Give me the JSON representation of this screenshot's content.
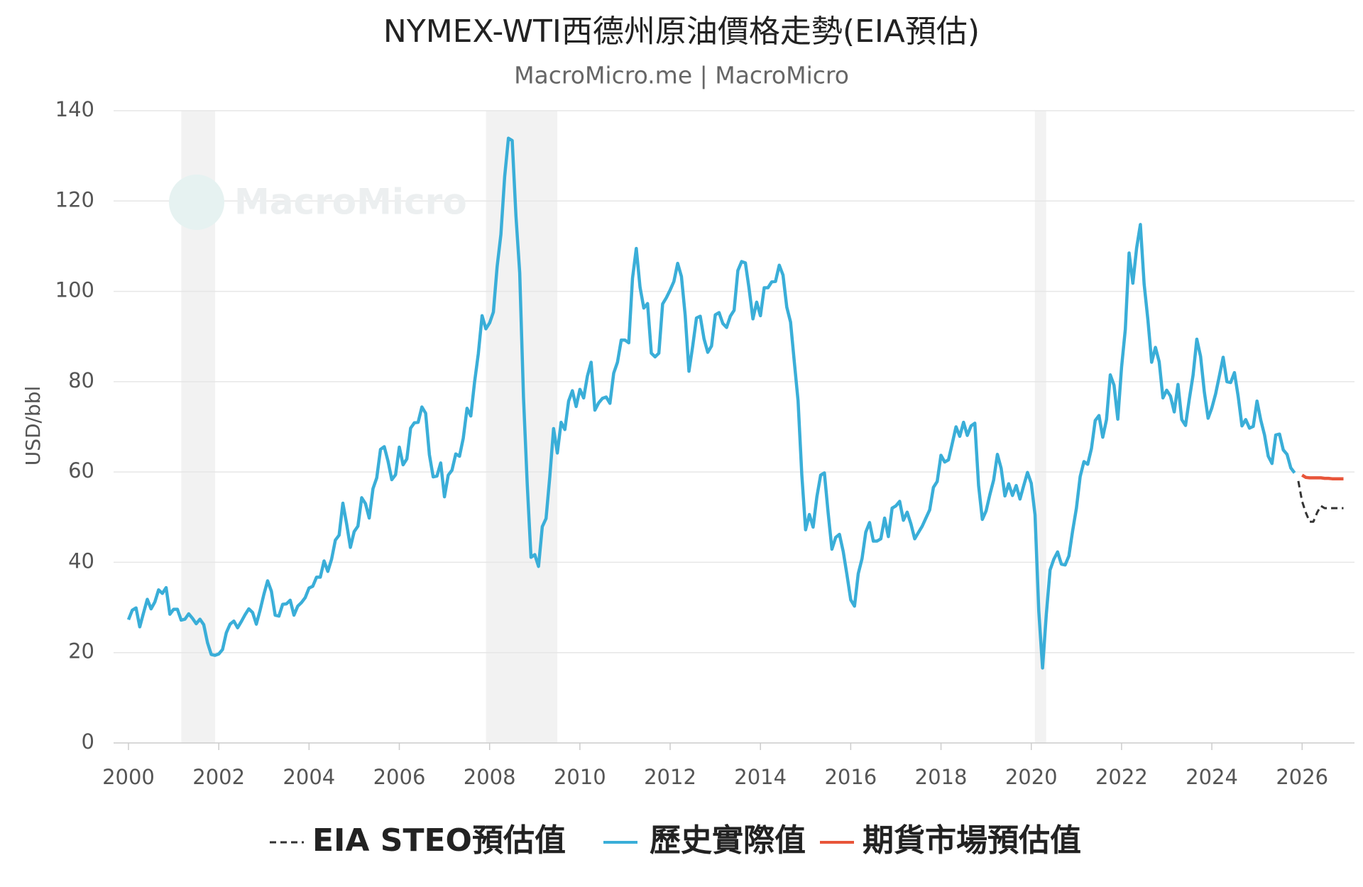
{
  "chart_data": {
    "type": "line",
    "title": "NYMEX-WTI西德州原油價格走勢(EIA預估)",
    "subtitle": "MacroMicro.me | MacroMicro",
    "watermark": "MacroMicro",
    "y_label": "USD/bbl",
    "xlim": [
      1999.67,
      2027.16
    ],
    "xticks": [
      2000,
      2002,
      2004,
      2006,
      2008,
      2010,
      2012,
      2014,
      2016,
      2018,
      2020,
      2022,
      2024,
      2026
    ],
    "ylim": [
      0,
      140
    ],
    "yticks": [
      0,
      20,
      40,
      60,
      80,
      100,
      120,
      140
    ],
    "grid": true,
    "shaded_ranges": [
      [
        2001.17,
        2001.92
      ],
      [
        2007.92,
        2009.5
      ],
      [
        2020.08,
        2020.33
      ]
    ],
    "series": [
      {
        "name": "歷史實際值",
        "color": "#3aaed8",
        "dash": false,
        "x": [
          "2000-01",
          "2000-02",
          "2000-03",
          "2000-04",
          "2000-05",
          "2000-06",
          "2000-07",
          "2000-08",
          "2000-09",
          "2000-10",
          "2000-11",
          "2000-12",
          "2001-01",
          "2001-02",
          "2001-03",
          "2001-04",
          "2001-05",
          "2001-06",
          "2001-07",
          "2001-08",
          "2001-09",
          "2001-10",
          "2001-11",
          "2001-12",
          "2002-01",
          "2002-02",
          "2002-03",
          "2002-04",
          "2002-05",
          "2002-06",
          "2002-07",
          "2002-08",
          "2002-09",
          "2002-10",
          "2002-11",
          "2002-12",
          "2003-01",
          "2003-02",
          "2003-03",
          "2003-04",
          "2003-05",
          "2003-06",
          "2003-07",
          "2003-08",
          "2003-09",
          "2003-10",
          "2003-11",
          "2003-12",
          "2004-01",
          "2004-02",
          "2004-03",
          "2004-04",
          "2004-05",
          "2004-06",
          "2004-07",
          "2004-08",
          "2004-09",
          "2004-10",
          "2004-11",
          "2004-12",
          "2005-01",
          "2005-02",
          "2005-03",
          "2005-04",
          "2005-05",
          "2005-06",
          "2005-07",
          "2005-08",
          "2005-09",
          "2005-10",
          "2005-11",
          "2005-12",
          "2006-01",
          "2006-02",
          "2006-03",
          "2006-04",
          "2006-05",
          "2006-06",
          "2006-07",
          "2006-08",
          "2006-09",
          "2006-10",
          "2006-11",
          "2006-12",
          "2007-01",
          "2007-02",
          "2007-03",
          "2007-04",
          "2007-05",
          "2007-06",
          "2007-07",
          "2007-08",
          "2007-09",
          "2007-10",
          "2007-11",
          "2007-12",
          "2008-01",
          "2008-02",
          "2008-03",
          "2008-04",
          "2008-05",
          "2008-06",
          "2008-07",
          "2008-08",
          "2008-09",
          "2008-10",
          "2008-11",
          "2008-12",
          "2009-01",
          "2009-02",
          "2009-03",
          "2009-04",
          "2009-05",
          "2009-06",
          "2009-07",
          "2009-08",
          "2009-09",
          "2009-10",
          "2009-11",
          "2009-12",
          "2010-01",
          "2010-02",
          "2010-03",
          "2010-04",
          "2010-05",
          "2010-06",
          "2010-07",
          "2010-08",
          "2010-09",
          "2010-10",
          "2010-11",
          "2010-12",
          "2011-01",
          "2011-02",
          "2011-03",
          "2011-04",
          "2011-05",
          "2011-06",
          "2011-07",
          "2011-08",
          "2011-09",
          "2011-10",
          "2011-11",
          "2011-12",
          "2012-01",
          "2012-02",
          "2012-03",
          "2012-04",
          "2012-05",
          "2012-06",
          "2012-07",
          "2012-08",
          "2012-09",
          "2012-10",
          "2012-11",
          "2012-12",
          "2013-01",
          "2013-02",
          "2013-03",
          "2013-04",
          "2013-05",
          "2013-06",
          "2013-07",
          "2013-08",
          "2013-09",
          "2013-10",
          "2013-11",
          "2013-12",
          "2014-01",
          "2014-02",
          "2014-03",
          "2014-04",
          "2014-05",
          "2014-06",
          "2014-07",
          "2014-08",
          "2014-09",
          "2014-10",
          "2014-11",
          "2014-12",
          "2015-01",
          "2015-02",
          "2015-03",
          "2015-04",
          "2015-05",
          "2015-06",
          "2015-07",
          "2015-08",
          "2015-09",
          "2015-10",
          "2015-11",
          "2015-12",
          "2016-01",
          "2016-02",
          "2016-03",
          "2016-04",
          "2016-05",
          "2016-06",
          "2016-07",
          "2016-08",
          "2016-09",
          "2016-10",
          "2016-11",
          "2016-12",
          "2017-01",
          "2017-02",
          "2017-03",
          "2017-04",
          "2017-05",
          "2017-06",
          "2017-07",
          "2017-08",
          "2017-09",
          "2017-10",
          "2017-11",
          "2017-12",
          "2018-01",
          "2018-02",
          "2018-03",
          "2018-04",
          "2018-05",
          "2018-06",
          "2018-07",
          "2018-08",
          "2018-09",
          "2018-10",
          "2018-11",
          "2018-12",
          "2019-01",
          "2019-02",
          "2019-03",
          "2019-04",
          "2019-05",
          "2019-06",
          "2019-07",
          "2019-08",
          "2019-09",
          "2019-10",
          "2019-11",
          "2019-12",
          "2020-01",
          "2020-02",
          "2020-03",
          "2020-04",
          "2020-05",
          "2020-06",
          "2020-07",
          "2020-08",
          "2020-09",
          "2020-10",
          "2020-11",
          "2020-12",
          "2021-01",
          "2021-02",
          "2021-03",
          "2021-04",
          "2021-05",
          "2021-06",
          "2021-07",
          "2021-08",
          "2021-09",
          "2021-10",
          "2021-11",
          "2021-12",
          "2022-01",
          "2022-02",
          "2022-03",
          "2022-04",
          "2022-05",
          "2022-06",
          "2022-07",
          "2022-08",
          "2022-09",
          "2022-10",
          "2022-11",
          "2022-12",
          "2023-01",
          "2023-02",
          "2023-03",
          "2023-04",
          "2023-05",
          "2023-06",
          "2023-07",
          "2023-08",
          "2023-09",
          "2023-10",
          "2023-11",
          "2023-12",
          "2024-01",
          "2024-02",
          "2024-03",
          "2024-04",
          "2024-05",
          "2024-06",
          "2024-07",
          "2024-08",
          "2024-09",
          "2024-10",
          "2024-11",
          "2024-12",
          "2025-01",
          "2025-02",
          "2025-03",
          "2025-04",
          "2025-05",
          "2025-06",
          "2025-07",
          "2025-08",
          "2025-09",
          "2025-10",
          "2025-11"
        ],
        "values": [
          27.3,
          29.4,
          29.9,
          25.7,
          28.8,
          31.8,
          29.7,
          31.2,
          33.9,
          33.1,
          34.4,
          28.5,
          29.6,
          29.6,
          27.2,
          27.4,
          28.6,
          27.6,
          26.4,
          27.4,
          26.2,
          22.2,
          19.6,
          19.4,
          19.7,
          20.7,
          24.4,
          26.3,
          27.0,
          25.5,
          26.9,
          28.4,
          29.7,
          28.9,
          26.3,
          29.4,
          32.9,
          35.9,
          33.6,
          28.3,
          28.1,
          30.7,
          30.8,
          31.6,
          28.3,
          30.3,
          31.1,
          32.2,
          34.3,
          34.7,
          36.7,
          36.7,
          40.3,
          38.0,
          40.7,
          44.9,
          46.0,
          53.1,
          48.5,
          43.3,
          46.8,
          48.0,
          54.3,
          53.0,
          49.8,
          56.3,
          58.7,
          65.0,
          65.6,
          62.4,
          58.3,
          59.4,
          65.5,
          61.6,
          62.9,
          69.7,
          70.9,
          71.0,
          74.4,
          73.0,
          63.8,
          58.9,
          59.1,
          62.0,
          54.5,
          59.3,
          60.4,
          64.0,
          63.5,
          67.5,
          74.1,
          72.4,
          79.9,
          86.2,
          94.6,
          91.7,
          93.0,
          95.4,
          105.5,
          112.6,
          125.4,
          133.9,
          133.4,
          116.7,
          104.1,
          76.6,
          57.3,
          41.1,
          41.7,
          39.1,
          47.9,
          49.7,
          59.0,
          69.6,
          64.2,
          71.0,
          69.4,
          75.7,
          78.0,
          74.5,
          78.3,
          76.4,
          81.2,
          84.3,
          73.7,
          75.3,
          76.3,
          76.6,
          75.2,
          81.9,
          84.3,
          89.2,
          89.2,
          88.6,
          102.9,
          109.5,
          100.9,
          96.3,
          97.3,
          86.3,
          85.5,
          86.3,
          97.2,
          98.6,
          100.3,
          102.2,
          106.2,
          103.3,
          94.7,
          82.3,
          87.9,
          94.1,
          94.5,
          89.5,
          86.5,
          87.9,
          94.8,
          95.3,
          92.9,
          92.0,
          94.5,
          95.8,
          104.6,
          106.6,
          106.3,
          100.5,
          93.9,
          97.6,
          94.6,
          100.8,
          100.8,
          102.1,
          102.2,
          105.8,
          103.6,
          96.5,
          93.2,
          84.4,
          75.8,
          59.3,
          47.2,
          50.6,
          47.8,
          54.5,
          59.3,
          59.8,
          50.9,
          42.9,
          45.5,
          46.2,
          42.4,
          37.2,
          31.7,
          30.3,
          37.5,
          40.8,
          46.7,
          48.8,
          44.7,
          44.7,
          45.2,
          49.8,
          45.7,
          52.0,
          52.5,
          53.5,
          49.3,
          51.1,
          48.5,
          45.2,
          46.6,
          48.0,
          49.8,
          51.6,
          56.6,
          57.9,
          63.7,
          62.2,
          62.7,
          66.3,
          70.0,
          67.9,
          71.0,
          68.1,
          70.2,
          70.8,
          57.0,
          49.5,
          51.4,
          55.0,
          58.2,
          63.9,
          60.8,
          54.7,
          57.4,
          54.8,
          57.0,
          54.0,
          57.0,
          59.9,
          57.5,
          50.5,
          29.2,
          16.6,
          28.5,
          38.3,
          40.7,
          42.3,
          39.6,
          39.4,
          41.4,
          47.0,
          52.0,
          59.0,
          62.3,
          61.7,
          65.2,
          71.4,
          72.5,
          67.7,
          71.6,
          81.5,
          79.2,
          71.7,
          83.2,
          91.6,
          108.5,
          101.8,
          109.6,
          114.8,
          101.6,
          93.7,
          84.3,
          87.6,
          84.4,
          76.4,
          78.1,
          76.8,
          73.3,
          79.4,
          71.6,
          70.3,
          76.1,
          81.4,
          89.4,
          85.6,
          77.7,
          71.9,
          74.2,
          77.3,
          81.3,
          85.4,
          80.0,
          79.8,
          82.0,
          76.7,
          70.2,
          71.6,
          69.7,
          70.1,
          75.7,
          71.5,
          68.2,
          63.5,
          61.9,
          68.2,
          68.4,
          64.9,
          63.9,
          60.9,
          59.8
        ]
      },
      {
        "name": "EIA STEO預估值",
        "color": "#333333",
        "dash": true,
        "x": [
          "2025-12",
          "2026-01",
          "2026-02",
          "2026-03",
          "2026-04",
          "2026-05",
          "2026-06",
          "2026-07",
          "2026-08",
          "2026-09",
          "2026-10",
          "2026-11",
          "2026-12"
        ],
        "values": [
          58.0,
          53.5,
          51.0,
          49.0,
          49.0,
          51.0,
          52.5,
          52.0,
          52.0,
          52.0,
          52.0,
          52.0,
          52.0
        ]
      },
      {
        "name": "期貨市場預估值",
        "color": "#e8553a",
        "dash": false,
        "x": [
          "2026-01",
          "2026-02",
          "2026-03",
          "2026-04",
          "2026-05",
          "2026-06",
          "2026-07",
          "2026-08",
          "2026-09",
          "2026-10",
          "2026-11",
          "2026-12"
        ],
        "values": [
          59.3,
          58.8,
          58.7,
          58.7,
          58.7,
          58.7,
          58.6,
          58.6,
          58.5,
          58.5,
          58.5,
          58.5
        ]
      }
    ],
    "legend_order": [
      1,
      0,
      2
    ]
  }
}
